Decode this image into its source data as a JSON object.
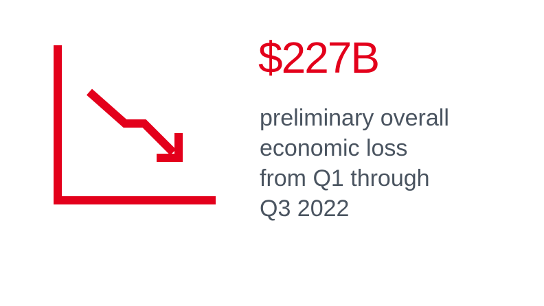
{
  "stat": {
    "value": "$227B",
    "description_lines": [
      "preliminary overall",
      "economic loss",
      "from Q1 through",
      "Q3 2022"
    ]
  },
  "icon": {
    "name": "trending-down-chart-icon"
  },
  "colors": {
    "accent": "#e3001b",
    "text": "#4a5460",
    "background": "#ffffff"
  }
}
